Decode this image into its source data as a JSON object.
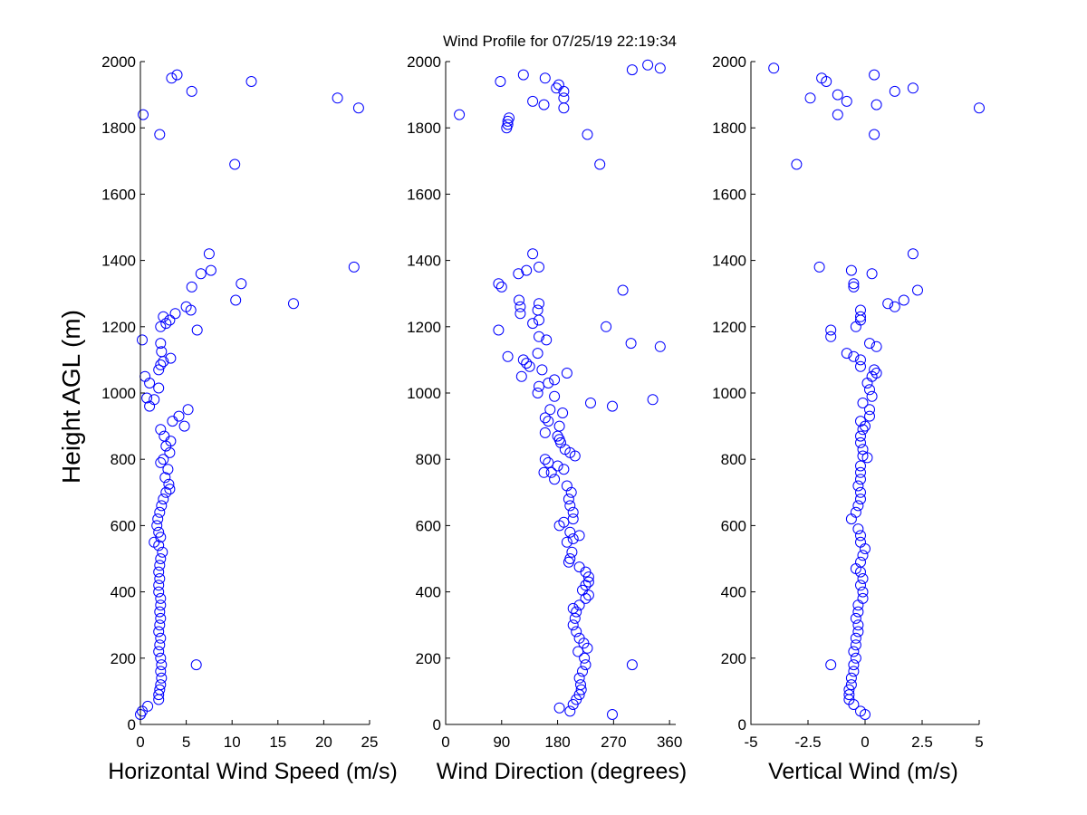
{
  "chart_data": {
    "type": "scatter",
    "title": "Wind Profile for  07/25/19 22:19:34",
    "ylabel": "Height AGL (m)",
    "ylim": [
      0,
      2000
    ],
    "yticks": [
      "0",
      "200",
      "400",
      "600",
      "800",
      "1000",
      "1200",
      "1400",
      "1600",
      "1800",
      "2000"
    ],
    "colors": {
      "marker": "#0000ff",
      "axis": "#000000"
    },
    "panels": [
      {
        "id": "speed",
        "xlabel": "Horizontal Wind Speed (m/s)",
        "xlim": [
          0,
          25
        ],
        "xticks": [
          "0",
          "5",
          "10",
          "15",
          "20",
          "25"
        ],
        "points": [
          [
            0,
            30
          ],
          [
            0.8,
            55
          ],
          [
            0.2,
            40
          ],
          [
            2,
            75
          ],
          [
            2,
            90
          ],
          [
            2.1,
            105
          ],
          [
            2.2,
            120
          ],
          [
            2.3,
            140
          ],
          [
            2.2,
            160
          ],
          [
            2.3,
            180
          ],
          [
            6.1,
            180
          ],
          [
            2.2,
            200
          ],
          [
            2,
            220
          ],
          [
            2.1,
            240
          ],
          [
            2.2,
            260
          ],
          [
            2,
            280
          ],
          [
            2.1,
            300
          ],
          [
            2.2,
            320
          ],
          [
            2.1,
            340
          ],
          [
            2.2,
            360
          ],
          [
            2.2,
            380
          ],
          [
            2,
            400
          ],
          [
            2,
            420
          ],
          [
            2.1,
            440
          ],
          [
            2,
            460
          ],
          [
            2.1,
            480
          ],
          [
            2.2,
            500
          ],
          [
            2.4,
            520
          ],
          [
            2,
            540
          ],
          [
            1.5,
            550
          ],
          [
            2.2,
            565
          ],
          [
            2,
            580
          ],
          [
            1.8,
            600
          ],
          [
            1.9,
            620
          ],
          [
            2.1,
            640
          ],
          [
            2.3,
            660
          ],
          [
            2.5,
            680
          ],
          [
            2.8,
            700
          ],
          [
            3.2,
            710
          ],
          [
            3.1,
            725
          ],
          [
            2.7,
            745
          ],
          [
            3,
            770
          ],
          [
            2.2,
            790
          ],
          [
            2.5,
            800
          ],
          [
            3.2,
            820
          ],
          [
            2.8,
            840
          ],
          [
            3.3,
            855
          ],
          [
            2.6,
            870
          ],
          [
            2.2,
            890
          ],
          [
            4.8,
            900
          ],
          [
            3.5,
            915
          ],
          [
            4.2,
            930
          ],
          [
            5.2,
            950
          ],
          [
            1,
            960
          ],
          [
            1.5,
            980
          ],
          [
            0.7,
            985
          ],
          [
            2,
            1015
          ],
          [
            1,
            1030
          ],
          [
            0.5,
            1050
          ],
          [
            2,
            1070
          ],
          [
            3.3,
            1105
          ],
          [
            2.2,
            1085
          ],
          [
            2.5,
            1095
          ],
          [
            2.3,
            1125
          ],
          [
            2.2,
            1150
          ],
          [
            0.2,
            1160
          ],
          [
            6.2,
            1190
          ],
          [
            2.2,
            1200
          ],
          [
            2.8,
            1210
          ],
          [
            3.2,
            1220
          ],
          [
            2.5,
            1230
          ],
          [
            3.8,
            1240
          ],
          [
            5.5,
            1250
          ],
          [
            5,
            1260
          ],
          [
            16.7,
            1270
          ],
          [
            10.4,
            1280
          ],
          [
            5.6,
            1320
          ],
          [
            11,
            1330
          ],
          [
            6.6,
            1360
          ],
          [
            7.7,
            1370
          ],
          [
            23.3,
            1380
          ],
          [
            7.5,
            1420
          ],
          [
            10.3,
            1690
          ],
          [
            2.1,
            1780
          ],
          [
            0.3,
            1840
          ],
          [
            23.8,
            1860
          ],
          [
            21.5,
            1890
          ],
          [
            5.6,
            1910
          ],
          [
            12.1,
            1940
          ],
          [
            3.4,
            1950
          ],
          [
            4,
            1960
          ]
        ]
      },
      {
        "id": "direction",
        "xlabel": "Wind Direction (degrees)",
        "xlim": [
          0,
          370
        ],
        "xticks": [
          "0",
          "90",
          "180",
          "270",
          "360"
        ],
        "tick_values": [
          0,
          90,
          180,
          270,
          360
        ],
        "points": [
          [
            268,
            30
          ],
          [
            200,
            40
          ],
          [
            183,
            50
          ],
          [
            205,
            60
          ],
          [
            210,
            75
          ],
          [
            215,
            90
          ],
          [
            218,
            105
          ],
          [
            217,
            120
          ],
          [
            215,
            140
          ],
          [
            220,
            160
          ],
          [
            300,
            180
          ],
          [
            225,
            180
          ],
          [
            223,
            200
          ],
          [
            213,
            220
          ],
          [
            228,
            230
          ],
          [
            222,
            245
          ],
          [
            215,
            260
          ],
          [
            210,
            280
          ],
          [
            205,
            300
          ],
          [
            208,
            320
          ],
          [
            210,
            340
          ],
          [
            205,
            350
          ],
          [
            215,
            360
          ],
          [
            225,
            380
          ],
          [
            230,
            390
          ],
          [
            220,
            405
          ],
          [
            225,
            420
          ],
          [
            230,
            430
          ],
          [
            230,
            445
          ],
          [
            225,
            460
          ],
          [
            215,
            475
          ],
          [
            198,
            490
          ],
          [
            200,
            500
          ],
          [
            203,
            520
          ],
          [
            195,
            550
          ],
          [
            205,
            560
          ],
          [
            215,
            570
          ],
          [
            200,
            580
          ],
          [
            183,
            600
          ],
          [
            190,
            610
          ],
          [
            205,
            620
          ],
          [
            205,
            640
          ],
          [
            200,
            660
          ],
          [
            198,
            680
          ],
          [
            202,
            700
          ],
          [
            195,
            720
          ],
          [
            175,
            740
          ],
          [
            170,
            760
          ],
          [
            158,
            760
          ],
          [
            190,
            770
          ],
          [
            180,
            780
          ],
          [
            165,
            790
          ],
          [
            160,
            800
          ],
          [
            208,
            810
          ],
          [
            200,
            820
          ],
          [
            192,
            830
          ],
          [
            185,
            850
          ],
          [
            183,
            860
          ],
          [
            180,
            870
          ],
          [
            160,
            880
          ],
          [
            183,
            900
          ],
          [
            165,
            915
          ],
          [
            160,
            925
          ],
          [
            188,
            940
          ],
          [
            168,
            950
          ],
          [
            268,
            960
          ],
          [
            233,
            970
          ],
          [
            333,
            980
          ],
          [
            175,
            990
          ],
          [
            148,
            1000
          ],
          [
            150,
            1020
          ],
          [
            165,
            1030
          ],
          [
            175,
            1040
          ],
          [
            122,
            1050
          ],
          [
            195,
            1060
          ],
          [
            155,
            1070
          ],
          [
            135,
            1080
          ],
          [
            130,
            1090
          ],
          [
            125,
            1100
          ],
          [
            100,
            1110
          ],
          [
            148,
            1120
          ],
          [
            345,
            1140
          ],
          [
            298,
            1150
          ],
          [
            162,
            1160
          ],
          [
            150,
            1170
          ],
          [
            85,
            1190
          ],
          [
            258,
            1200
          ],
          [
            140,
            1210
          ],
          [
            150,
            1220
          ],
          [
            120,
            1240
          ],
          [
            148,
            1250
          ],
          [
            120,
            1260
          ],
          [
            150,
            1270
          ],
          [
            118,
            1280
          ],
          [
            285,
            1310
          ],
          [
            90,
            1320
          ],
          [
            85,
            1330
          ],
          [
            117,
            1360
          ],
          [
            130,
            1370
          ],
          [
            150,
            1380
          ],
          [
            140,
            1420
          ],
          [
            248,
            1690
          ],
          [
            228,
            1780
          ],
          [
            22,
            1840
          ],
          [
            98,
            1800
          ],
          [
            100,
            1810
          ],
          [
            100,
            1820
          ],
          [
            102,
            1830
          ],
          [
            190,
            1860
          ],
          [
            158,
            1870
          ],
          [
            140,
            1880
          ],
          [
            88,
            1940
          ],
          [
            190,
            1890
          ],
          [
            190,
            1910
          ],
          [
            178,
            1920
          ],
          [
            160,
            1950
          ],
          [
            125,
            1960
          ],
          [
            182,
            1930
          ],
          [
            300,
            1975
          ],
          [
            345,
            1980
          ],
          [
            325,
            1990
          ]
        ]
      },
      {
        "id": "vertical",
        "xlabel": "Vertical Wind (m/s)",
        "xlim": [
          -5,
          5
        ],
        "xticks": [
          "-5",
          "-2.5",
          "0",
          "2.5",
          "5"
        ],
        "tick_values": [
          -5,
          -2.5,
          0,
          2.5,
          5
        ],
        "points": [
          [
            0,
            30
          ],
          [
            -0.2,
            40
          ],
          [
            -0.5,
            60
          ],
          [
            -0.7,
            75
          ],
          [
            -0.7,
            90
          ],
          [
            -0.7,
            105
          ],
          [
            -0.6,
            120
          ],
          [
            -0.6,
            140
          ],
          [
            -0.5,
            160
          ],
          [
            -1.5,
            180
          ],
          [
            -0.5,
            180
          ],
          [
            -0.4,
            200
          ],
          [
            -0.5,
            220
          ],
          [
            -0.4,
            240
          ],
          [
            -0.4,
            260
          ],
          [
            -0.3,
            280
          ],
          [
            -0.3,
            300
          ],
          [
            -0.4,
            320
          ],
          [
            -0.3,
            340
          ],
          [
            -0.3,
            360
          ],
          [
            -0.1,
            380
          ],
          [
            -0.1,
            400
          ],
          [
            -0.2,
            420
          ],
          [
            -0.1,
            440
          ],
          [
            -0.2,
            460
          ],
          [
            -0.4,
            470
          ],
          [
            -0.2,
            490
          ],
          [
            -0.1,
            510
          ],
          [
            0,
            530
          ],
          [
            -0.2,
            550
          ],
          [
            -0.2,
            570
          ],
          [
            -0.3,
            590
          ],
          [
            -0.6,
            620
          ],
          [
            -0.4,
            640
          ],
          [
            -0.3,
            660
          ],
          [
            -0.2,
            680
          ],
          [
            -0.2,
            700
          ],
          [
            -0.3,
            720
          ],
          [
            -0.2,
            740
          ],
          [
            -0.2,
            760
          ],
          [
            -0.2,
            780
          ],
          [
            0.1,
            805
          ],
          [
            -0.1,
            810
          ],
          [
            -0.1,
            830
          ],
          [
            -0.2,
            850
          ],
          [
            -0.2,
            870
          ],
          [
            -0.1,
            890
          ],
          [
            0,
            900
          ],
          [
            -0.2,
            915
          ],
          [
            0.2,
            930
          ],
          [
            0.2,
            950
          ],
          [
            -0.1,
            970
          ],
          [
            0.3,
            990
          ],
          [
            0.2,
            1010
          ],
          [
            0.1,
            1030
          ],
          [
            0.5,
            1060
          ],
          [
            0.4,
            1070
          ],
          [
            0.3,
            1050
          ],
          [
            -0.2,
            1080
          ],
          [
            -0.2,
            1100
          ],
          [
            -0.5,
            1110
          ],
          [
            -0.8,
            1120
          ],
          [
            0.5,
            1140
          ],
          [
            0.2,
            1150
          ],
          [
            -1.5,
            1170
          ],
          [
            -1.5,
            1190
          ],
          [
            -0.4,
            1200
          ],
          [
            -0.2,
            1220
          ],
          [
            -0.2,
            1230
          ],
          [
            -0.2,
            1250
          ],
          [
            1,
            1270
          ],
          [
            1.3,
            1260
          ],
          [
            1.7,
            1280
          ],
          [
            2.3,
            1310
          ],
          [
            -0.5,
            1320
          ],
          [
            -0.5,
            1330
          ],
          [
            0.3,
            1360
          ],
          [
            -0.6,
            1370
          ],
          [
            -2,
            1380
          ],
          [
            2.1,
            1420
          ],
          [
            -3,
            1690
          ],
          [
            0.4,
            1780
          ],
          [
            -1.2,
            1840
          ],
          [
            5,
            1860
          ],
          [
            0.5,
            1870
          ],
          [
            -0.8,
            1880
          ],
          [
            -2.4,
            1890
          ],
          [
            -1.2,
            1900
          ],
          [
            1.3,
            1910
          ],
          [
            2.1,
            1920
          ],
          [
            -1.7,
            1940
          ],
          [
            -1.9,
            1950
          ],
          [
            0.4,
            1960
          ],
          [
            -4,
            1980
          ]
        ]
      }
    ]
  }
}
